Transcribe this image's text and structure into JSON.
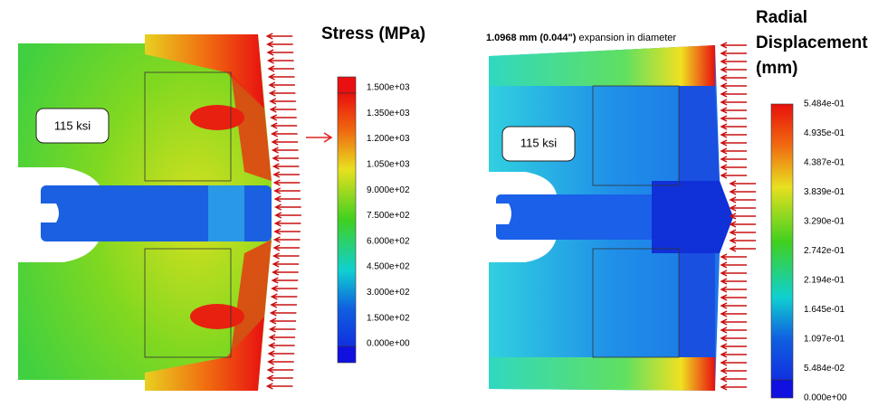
{
  "left_panel": {
    "title": "Stress (MPa)",
    "box_label": "115 ksi",
    "colorbar_labels": [
      "1.500e+03",
      "1.350e+03",
      "1.200e+03",
      "1.050e+03",
      "9.000e+02",
      "7.500e+02",
      "6.000e+02",
      "4.500e+02",
      "3.000e+02",
      "1.500e+02",
      "0.000e+00"
    ]
  },
  "right_panel": {
    "annotation_bold": "1.0968 mm (0.044\")",
    "annotation_rest": "expansion in diameter",
    "title_lines": [
      "Radial",
      "Displacement",
      "(mm)"
    ],
    "box_label": "115 ksi",
    "colorbar_labels": [
      "5.484e-01",
      "4.935e-01",
      "4.387e-01",
      "3.839e-01",
      "3.290e-01",
      "2.742e-01",
      "2.194e-01",
      "1.645e-01",
      "1.097e-01",
      "5.484e-02",
      "0.000e+00"
    ]
  }
}
